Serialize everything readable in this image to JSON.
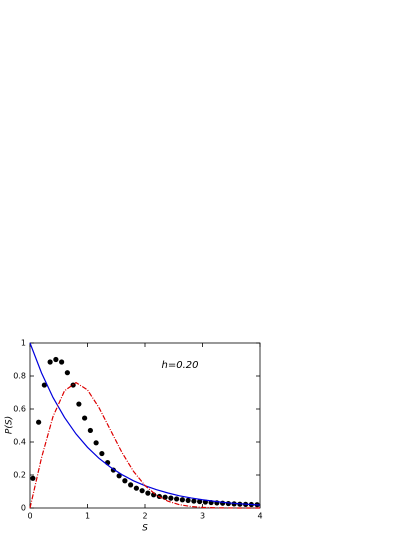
{
  "chart_data": {
    "type": "scatter",
    "annotation": "h=0.20",
    "xlabel": "S",
    "ylabel": "P(S)",
    "xlim": [
      0,
      4
    ],
    "ylim": [
      0,
      1
    ],
    "xticks": [
      0,
      1,
      2,
      3,
      4
    ],
    "yticks": [
      0,
      0.2,
      0.4,
      0.6,
      0.8,
      1
    ],
    "series": [
      {
        "mode": "markers",
        "color": "#000000",
        "x": [
          0.05,
          0.15,
          0.25,
          0.35,
          0.45,
          0.55,
          0.65,
          0.75,
          0.85,
          0.95,
          1.05,
          1.15,
          1.25,
          1.35,
          1.45,
          1.55,
          1.65,
          1.75,
          1.85,
          1.95,
          2.05,
          2.15,
          2.25,
          2.35,
          2.45,
          2.55,
          2.65,
          2.75,
          2.85,
          2.95,
          3.05,
          3.15,
          3.25,
          3.35,
          3.45,
          3.55,
          3.65,
          3.75,
          3.85,
          3.95
        ],
        "values": [
          0.18,
          0.52,
          0.745,
          0.885,
          0.9,
          0.885,
          0.82,
          0.745,
          0.63,
          0.545,
          0.47,
          0.395,
          0.33,
          0.275,
          0.23,
          0.195,
          0.165,
          0.14,
          0.12,
          0.105,
          0.09,
          0.08,
          0.07,
          0.065,
          0.06,
          0.055,
          0.05,
          0.046,
          0.042,
          0.039,
          0.036,
          0.033,
          0.031,
          0.029,
          0.027,
          0.025,
          0.023,
          0.022,
          0.021,
          0.02
        ]
      },
      {
        "mode": "line",
        "color": "#0000dd",
        "dash": false,
        "x": [
          0,
          0.2,
          0.4,
          0.6,
          0.8,
          1.0,
          1.2,
          1.4,
          1.6,
          1.8,
          2.0,
          2.2,
          2.4,
          2.6,
          2.8,
          3.0,
          3.2,
          3.4,
          3.6,
          3.8,
          4.0
        ],
        "values": [
          1,
          0.819,
          0.67,
          0.549,
          0.449,
          0.368,
          0.301,
          0.247,
          0.202,
          0.165,
          0.135,
          0.111,
          0.091,
          0.074,
          0.061,
          0.05,
          0.041,
          0.033,
          0.027,
          0.022,
          0.018
        ]
      },
      {
        "mode": "line",
        "color": "#dd0000",
        "dash": true,
        "x": [
          0,
          0.2,
          0.4,
          0.6,
          0.8,
          1.0,
          1.2,
          1.4,
          1.6,
          1.8,
          2.0,
          2.2,
          2.4,
          2.6,
          2.8,
          3.0,
          3.2,
          3.4,
          3.6,
          3.8,
          4.0
        ],
        "values": [
          0,
          0.304,
          0.554,
          0.71,
          0.76,
          0.716,
          0.608,
          0.472,
          0.336,
          0.222,
          0.136,
          0.077,
          0.041,
          0.02,
          0.009,
          0.004,
          0.0015,
          0.0005,
          0.0002,
          0.0001,
          0
        ]
      }
    ]
  }
}
